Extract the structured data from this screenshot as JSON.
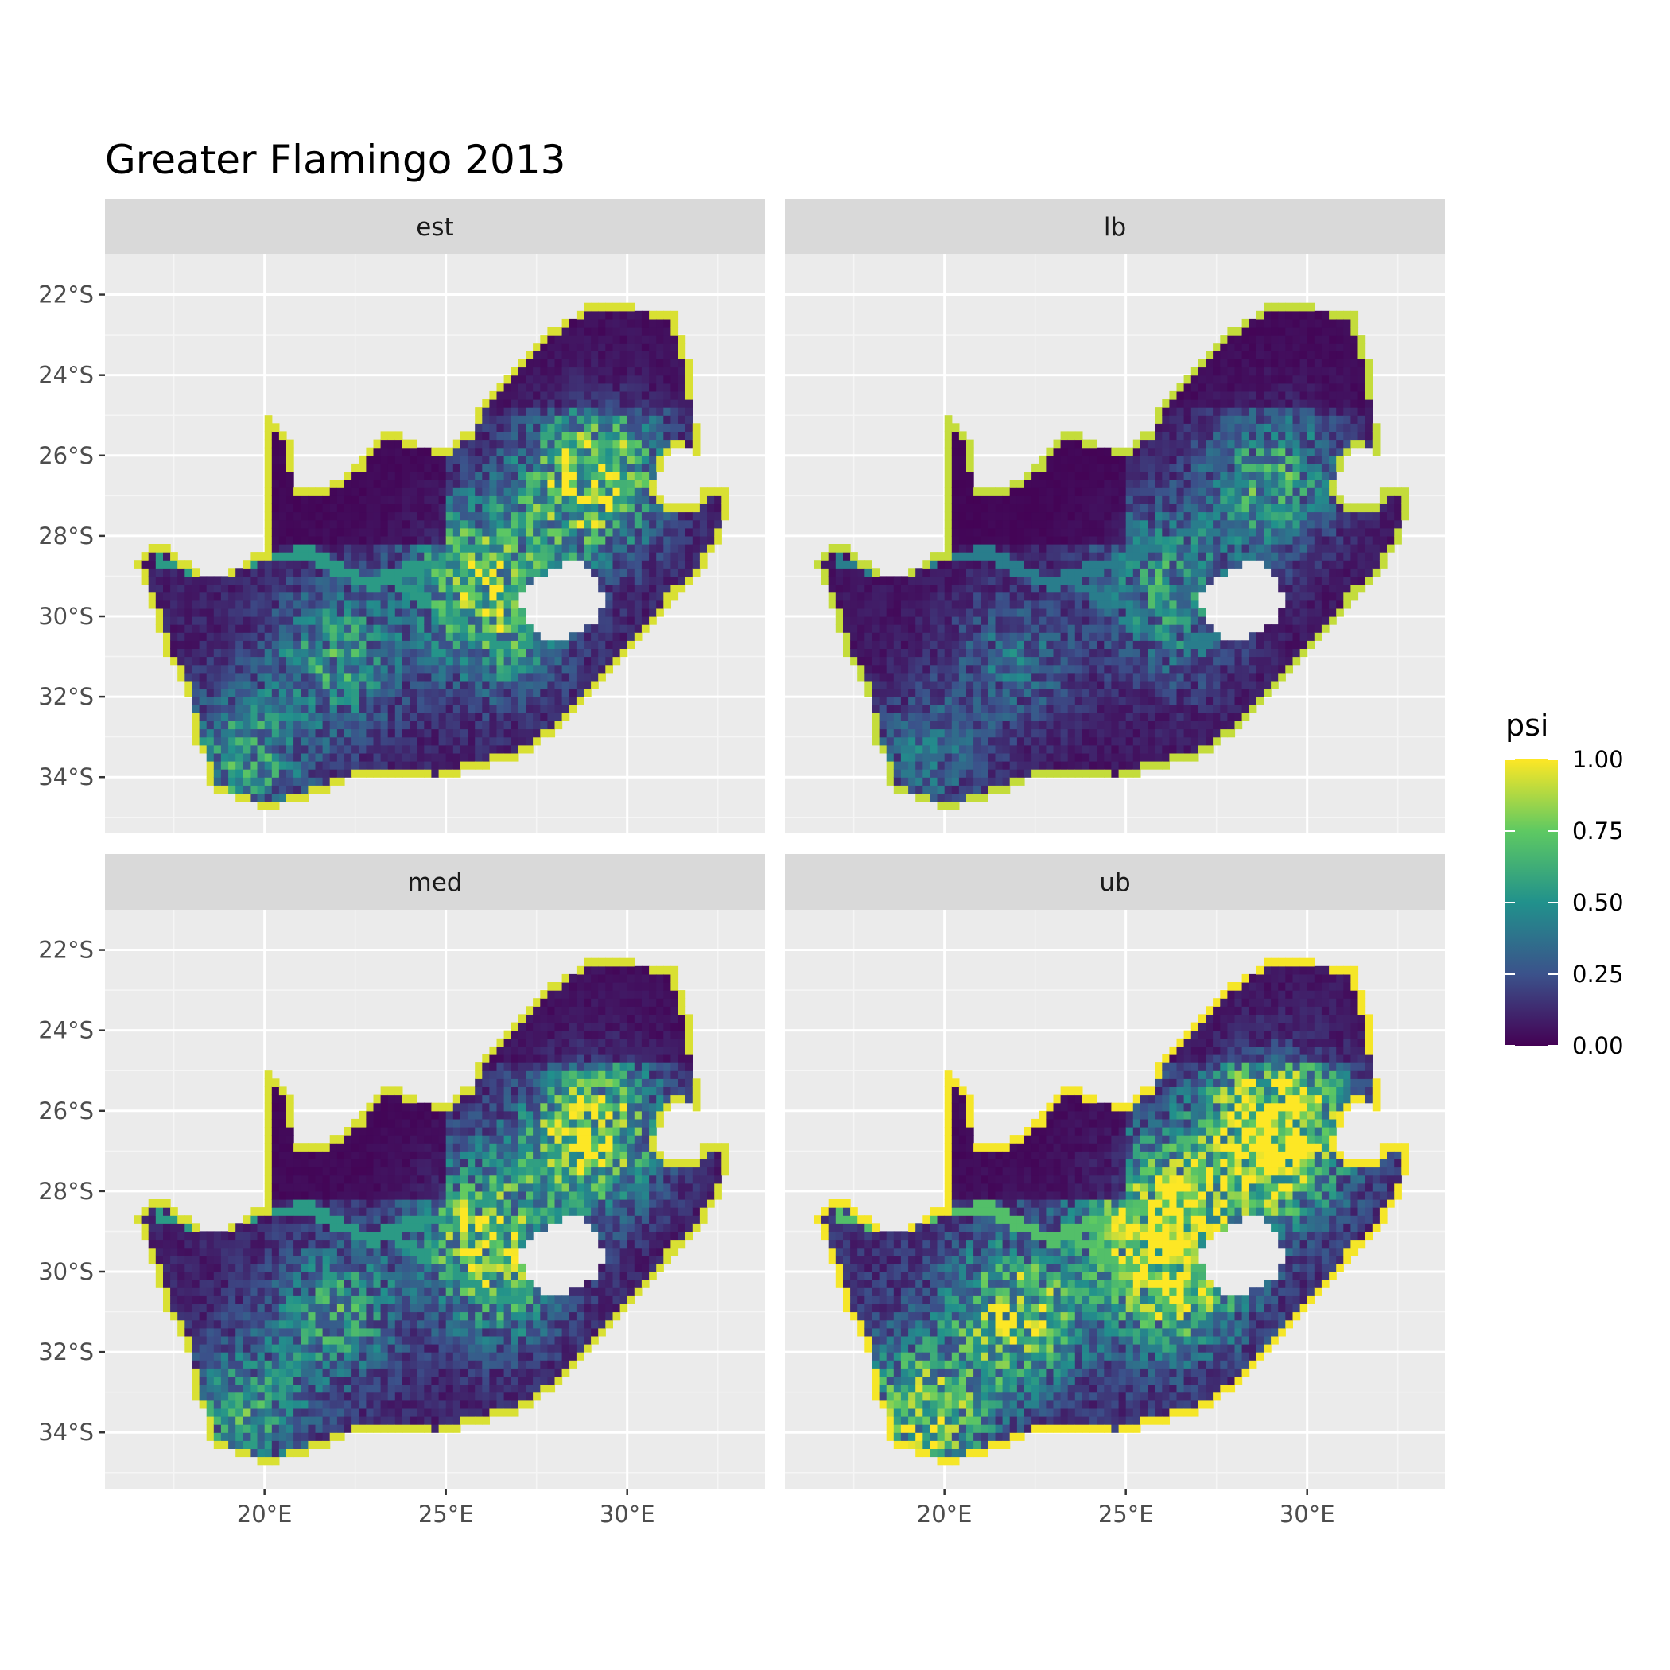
{
  "title": "Greater Flamingo 2013",
  "facets": [
    {
      "key": "est",
      "label": "est",
      "intensity": 0.62
    },
    {
      "key": "lb",
      "label": "lb",
      "intensity": 0.4
    },
    {
      "key": "med",
      "label": "med",
      "intensity": 0.62
    },
    {
      "key": "ub",
      "label": "ub",
      "intensity": 0.92
    }
  ],
  "axes": {
    "x": {
      "ticks": [
        20,
        25,
        30
      ],
      "tick_labels": [
        "20°E",
        "25°E",
        "30°E"
      ],
      "range": [
        15.6,
        33.8
      ]
    },
    "y": {
      "ticks": [
        -22,
        -24,
        -26,
        -28,
        -30,
        -32,
        -34
      ],
      "tick_labels": [
        "22°S",
        "24°S",
        "26°S",
        "28°S",
        "30°S",
        "32°S",
        "34°S"
      ],
      "range": [
        -35.4,
        -21.0
      ]
    }
  },
  "legend": {
    "title": "psi",
    "placement": "right",
    "breaks": [
      1.0,
      0.75,
      0.5,
      0.25,
      0.0
    ],
    "labels": [
      "1.00",
      "0.75",
      "0.50",
      "0.25",
      "0.00"
    ],
    "palette": [
      "#440154",
      "#3b528b",
      "#21918c",
      "#5ec962",
      "#fde725"
    ]
  },
  "colors": {
    "panel_background": "#ebebeb",
    "strip_background": "#d9d9d9",
    "grid": "#ffffff"
  },
  "map": {
    "country_outline": [
      [
        16.45,
        -28.6
      ],
      [
        16.9,
        -28.1
      ],
      [
        17.4,
        -28.3
      ],
      [
        18.2,
        -28.9
      ],
      [
        19.0,
        -28.9
      ],
      [
        19.6,
        -28.5
      ],
      [
        20.0,
        -28.4
      ],
      [
        20.0,
        -24.8
      ],
      [
        20.8,
        -25.7
      ],
      [
        20.9,
        -26.8
      ],
      [
        21.7,
        -26.8
      ],
      [
        22.6,
        -26.2
      ],
      [
        23.0,
        -25.6
      ],
      [
        23.5,
        -25.4
      ],
      [
        24.2,
        -25.7
      ],
      [
        25.1,
        -25.8
      ],
      [
        25.7,
        -25.3
      ],
      [
        26.0,
        -24.6
      ],
      [
        27.0,
        -23.6
      ],
      [
        28.0,
        -22.8
      ],
      [
        29.0,
        -22.2
      ],
      [
        30.3,
        -22.3
      ],
      [
        31.3,
        -22.4
      ],
      [
        31.8,
        -23.9
      ],
      [
        31.9,
        -25.2
      ],
      [
        31.9,
        -25.9
      ],
      [
        31.3,
        -25.8
      ],
      [
        30.9,
        -26.3
      ],
      [
        30.8,
        -26.9
      ],
      [
        31.3,
        -27.3
      ],
      [
        31.9,
        -27.2
      ],
      [
        32.1,
        -26.8
      ],
      [
        32.9,
        -26.9
      ],
      [
        32.6,
        -28.0
      ],
      [
        32.0,
        -28.9
      ],
      [
        31.3,
        -29.5
      ],
      [
        30.4,
        -30.6
      ],
      [
        29.5,
        -31.4
      ],
      [
        28.2,
        -32.7
      ],
      [
        27.0,
        -33.5
      ],
      [
        25.7,
        -33.8
      ],
      [
        24.8,
        -34.1
      ],
      [
        23.4,
        -33.9
      ],
      [
        22.5,
        -34.0
      ],
      [
        21.5,
        -34.4
      ],
      [
        20.0,
        -34.8
      ],
      [
        19.5,
        -34.6
      ],
      [
        18.8,
        -34.4
      ],
      [
        18.4,
        -34.1
      ],
      [
        18.3,
        -33.4
      ],
      [
        18.0,
        -33.0
      ],
      [
        17.9,
        -32.0
      ],
      [
        17.3,
        -30.9
      ],
      [
        16.9,
        -29.8
      ],
      [
        16.45,
        -28.6
      ]
    ],
    "hole_outline": [
      [
        27.0,
        -29.6
      ],
      [
        27.5,
        -29.0
      ],
      [
        28.2,
        -28.7
      ],
      [
        28.6,
        -28.6
      ],
      [
        29.1,
        -29.0
      ],
      [
        29.4,
        -29.5
      ],
      [
        29.2,
        -30.1
      ],
      [
        28.8,
        -30.3
      ],
      [
        28.2,
        -30.6
      ],
      [
        27.7,
        -30.6
      ],
      [
        27.2,
        -30.2
      ],
      [
        27.0,
        -29.6
      ]
    ],
    "rivers": [
      [
        [
          17.0,
          -28.6
        ],
        [
          18.0,
          -28.8
        ],
        [
          19.0,
          -28.8
        ],
        [
          20.0,
          -28.5
        ],
        [
          21.2,
          -28.4
        ],
        [
          22.2,
          -28.9
        ],
        [
          23.0,
          -29.2
        ],
        [
          23.6,
          -28.9
        ],
        [
          24.6,
          -28.7
        ],
        [
          25.4,
          -28.4
        ],
        [
          26.1,
          -28.2
        ],
        [
          27.2,
          -27.6
        ],
        [
          28.2,
          -27.0
        ]
      ],
      [
        [
          23.4,
          -29.0
        ],
        [
          24.4,
          -29.6
        ],
        [
          25.0,
          -29.7
        ],
        [
          25.8,
          -30.5
        ],
        [
          26.6,
          -30.7
        ],
        [
          27.3,
          -30.6
        ]
      ]
    ],
    "hotspots": [
      [
        29.4,
        -26.3
      ],
      [
        25.7,
        -28.6
      ],
      [
        22.0,
        -31.0
      ],
      [
        19.4,
        -33.6
      ],
      [
        26.5,
        -30.2
      ],
      [
        28.6,
        -26.9
      ]
    ]
  }
}
